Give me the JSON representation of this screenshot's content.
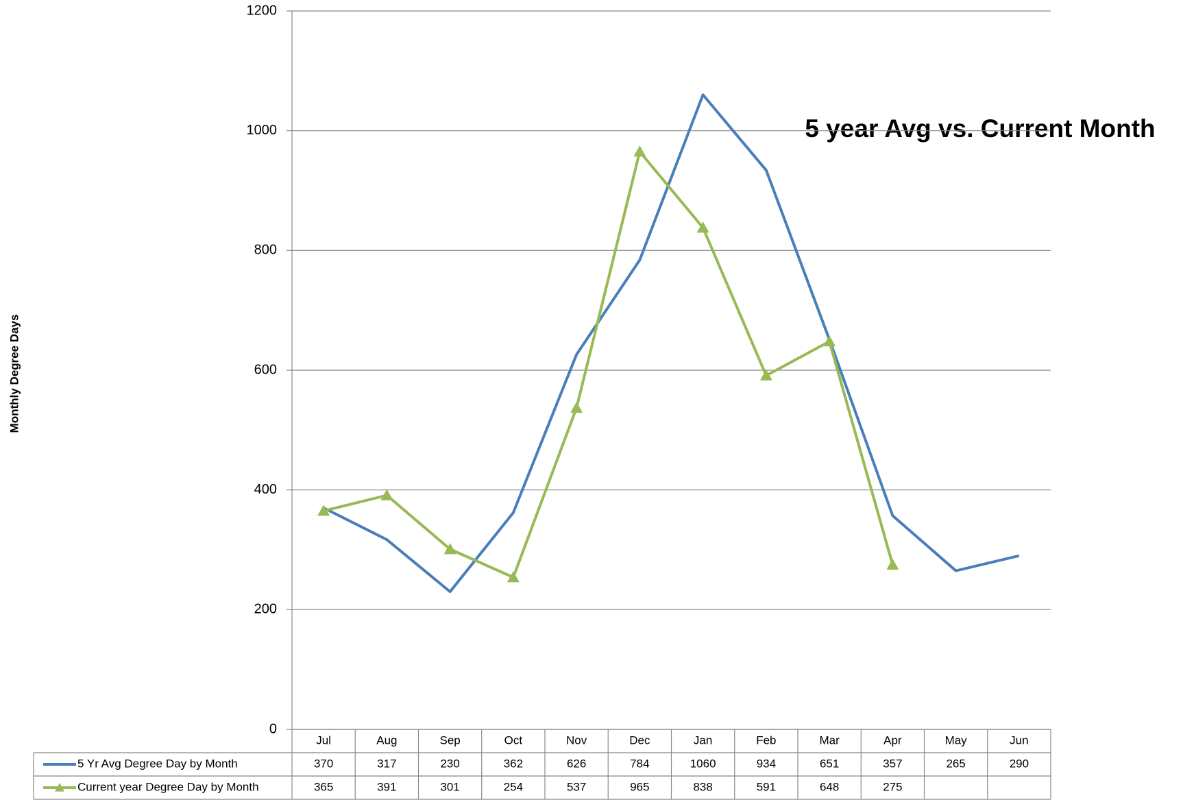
{
  "chart_data": {
    "type": "line",
    "title": "5 year Avg vs. Current Month",
    "y_label": "Monthly Degree Days",
    "categories": [
      "Jul",
      "Aug",
      "Sep",
      "Oct",
      "Nov",
      "Dec",
      "Jan",
      "Feb",
      "Mar",
      "Apr",
      "May",
      "Jun"
    ],
    "series": [
      {
        "name": "5 Yr Avg Degree Day by Month",
        "color": "#4a7ebb",
        "marker": "none",
        "values": [
          370,
          317,
          230,
          362,
          626,
          784,
          1060,
          934,
          651,
          357,
          265,
          290
        ]
      },
      {
        "name": "Current year Degree Day by Month",
        "color": "#98b954",
        "marker": "triangle",
        "values": [
          365,
          391,
          301,
          254,
          537,
          965,
          838,
          591,
          648,
          275,
          null,
          null
        ]
      }
    ],
    "ylim": [
      0,
      1200
    ],
    "yticks": [
      0,
      200,
      400,
      600,
      800,
      1000,
      1200
    ],
    "grid": true,
    "data_table": true
  }
}
